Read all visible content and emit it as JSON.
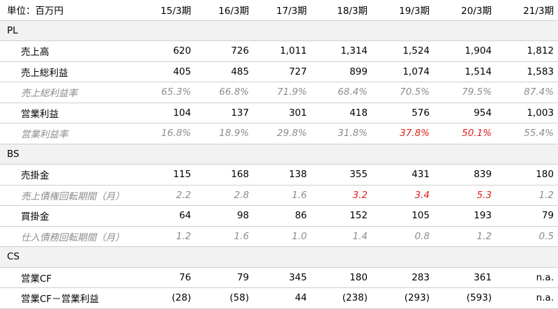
{
  "table": {
    "unit_label": "単位：百万円",
    "columns": [
      "15/3期",
      "16/3期",
      "17/3期",
      "18/3期",
      "19/3期",
      "20/3期",
      "21/3期"
    ],
    "sections": [
      {
        "title": "PL",
        "rows": [
          {
            "label": "売上高",
            "style": "value",
            "values": [
              "620",
              "726",
              "1,011",
              "1,314",
              "1,524",
              "1,904",
              "1,812"
            ],
            "highlight": []
          },
          {
            "label": "売上総利益",
            "style": "value",
            "values": [
              "405",
              "485",
              "727",
              "899",
              "1,074",
              "1,514",
              "1,583"
            ],
            "highlight": []
          },
          {
            "label": "売上総利益率",
            "style": "ratio",
            "values": [
              "65.3%",
              "66.8%",
              "71.9%",
              "68.4%",
              "70.5%",
              "79.5%",
              "87.4%"
            ],
            "highlight": []
          },
          {
            "label": "営業利益",
            "style": "value",
            "values": [
              "104",
              "137",
              "301",
              "418",
              "576",
              "954",
              "1,003"
            ],
            "highlight": []
          },
          {
            "label": "営業利益率",
            "style": "ratio",
            "values": [
              "16.8%",
              "18.9%",
              "29.8%",
              "31.8%",
              "37.8%",
              "50.1%",
              "55.4%"
            ],
            "highlight": [
              4,
              5
            ]
          }
        ]
      },
      {
        "title": "BS",
        "rows": [
          {
            "label": "売掛金",
            "style": "value",
            "values": [
              "115",
              "168",
              "138",
              "355",
              "431",
              "839",
              "180"
            ],
            "highlight": []
          },
          {
            "label": "売上債権回転期間（月）",
            "style": "ratio",
            "values": [
              "2.2",
              "2.8",
              "1.6",
              "3.2",
              "3.4",
              "5.3",
              "1.2"
            ],
            "highlight": [
              3,
              4,
              5
            ]
          },
          {
            "label": "買掛金",
            "style": "value",
            "values": [
              "64",
              "98",
              "86",
              "152",
              "105",
              "193",
              "79"
            ],
            "highlight": []
          },
          {
            "label": "仕入債務回転期間（月）",
            "style": "ratio",
            "values": [
              "1.2",
              "1.6",
              "1.0",
              "1.4",
              "0.8",
              "1.2",
              "0.5"
            ],
            "highlight": []
          }
        ]
      },
      {
        "title": "CS",
        "rows": [
          {
            "label": "営業CF",
            "style": "value",
            "values": [
              "76",
              "79",
              "345",
              "180",
              "283",
              "361",
              "n.a."
            ],
            "highlight": []
          },
          {
            "label": "営業CF－営業利益",
            "style": "value",
            "values": [
              "(28)",
              "(58)",
              "44",
              "(238)",
              "(293)",
              "(593)",
              "n.a."
            ],
            "highlight": []
          }
        ]
      }
    ]
  },
  "colors": {
    "highlight": "#e0201b",
    "ratio_text": "#8c8c8c",
    "section_bg": "#f2f2f2",
    "rule": "#cfcfcf"
  }
}
